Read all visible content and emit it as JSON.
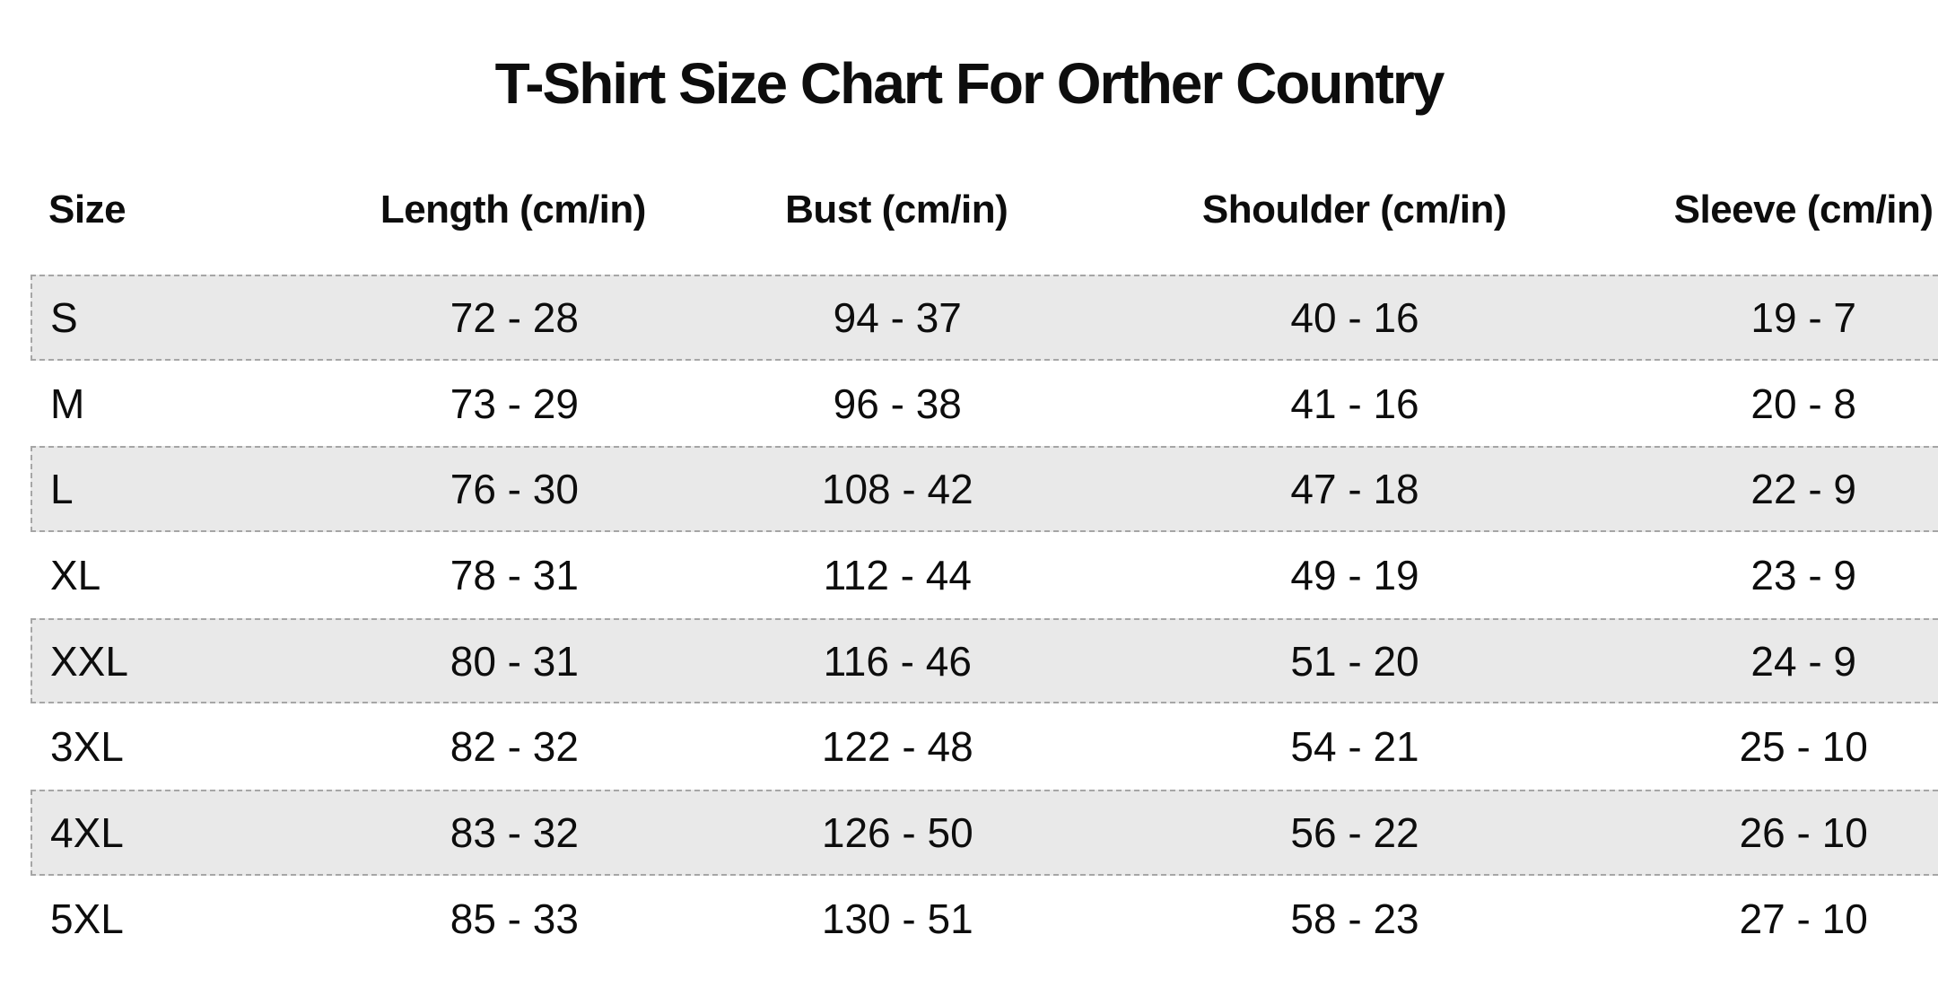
{
  "page": {
    "title": "T-Shirt Size Chart For Orther Country"
  },
  "table": {
    "columns": [
      "Size",
      "Length (cm/in)",
      "Bust (cm/in)",
      "Shoulder (cm/in)",
      "Sleeve (cm/in)"
    ],
    "rows": [
      {
        "size": "S",
        "length": "72 - 28",
        "bust": "94 - 37",
        "shoulder": "40 - 16",
        "sleeve": "19 - 7",
        "striped": true
      },
      {
        "size": "M",
        "length": "73 - 29",
        "bust": "96 - 38",
        "shoulder": "41 - 16",
        "sleeve": "20 - 8",
        "striped": false
      },
      {
        "size": "L",
        "length": "76 - 30",
        "bust": "108 - 42",
        "shoulder": "47 - 18",
        "sleeve": "22 - 9",
        "striped": true
      },
      {
        "size": "XL",
        "length": "78 - 31",
        "bust": "112 - 44",
        "shoulder": "49 - 19",
        "sleeve": "23 - 9",
        "striped": false
      },
      {
        "size": "XXL",
        "length": "80 - 31",
        "bust": "116 - 46",
        "shoulder": "51 - 20",
        "sleeve": "24 - 9",
        "striped": true
      },
      {
        "size": "3XL",
        "length": "82 - 32",
        "bust": "122 - 48",
        "shoulder": "54 - 21",
        "sleeve": "25 - 10",
        "striped": false
      },
      {
        "size": "4XL",
        "length": "83 - 32",
        "bust": "126 - 50",
        "shoulder": "56 - 22",
        "sleeve": "26 - 10",
        "striped": true
      },
      {
        "size": "5XL",
        "length": "85 - 33",
        "bust": "130 - 51",
        "shoulder": "58 - 23",
        "sleeve": "27 - 10",
        "striped": false
      }
    ]
  },
  "colors": {
    "background": "#ffffff",
    "text": "#0d0d0d",
    "stripe_bg": "#e9e9e9",
    "stripe_border": "#a6a6a6"
  },
  "chart_data": {
    "type": "table",
    "title": "T-Shirt Size Chart For Orther Country",
    "columns": [
      "Size",
      "Length (cm/in)",
      "Bust (cm/in)",
      "Shoulder (cm/in)",
      "Sleeve (cm/in)"
    ],
    "rows": [
      [
        "S",
        "72 - 28",
        "94 - 37",
        "40 - 16",
        "19 - 7"
      ],
      [
        "M",
        "73 - 29",
        "96 - 38",
        "41 - 16",
        "20 - 8"
      ],
      [
        "L",
        "76 - 30",
        "108 - 42",
        "47 - 18",
        "22 - 9"
      ],
      [
        "XL",
        "78 - 31",
        "112 - 44",
        "49 - 19",
        "23 - 9"
      ],
      [
        "XXL",
        "80 - 31",
        "116 - 46",
        "51 - 20",
        "24 - 9"
      ],
      [
        "3XL",
        "82 - 32",
        "122 - 48",
        "54 - 21",
        "25 - 10"
      ],
      [
        "4XL",
        "83 - 32",
        "126 - 50",
        "56 - 22",
        "26 - 10"
      ],
      [
        "5XL",
        "85 - 33",
        "130 - 51",
        "58 - 23",
        "27 - 10"
      ]
    ],
    "layout": {
      "striped_rows": [
        0,
        2,
        4,
        6
      ],
      "size_column_align": "left",
      "value_columns_align": "center"
    }
  }
}
